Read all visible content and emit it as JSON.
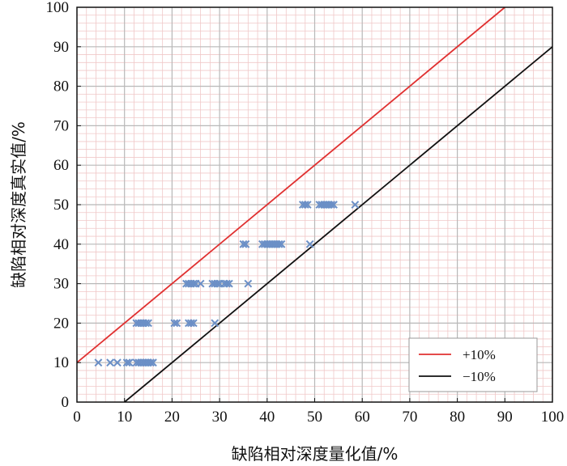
{
  "chart_data": {
    "type": "scatter",
    "xlabel": "缺陷相对深度量化值/%",
    "ylabel": "缺陷相对深度真实值/%",
    "xlim": [
      0,
      100
    ],
    "ylim": [
      0,
      100
    ],
    "x_ticks": [
      "0",
      "10",
      "20",
      "30",
      "40",
      "50",
      "60",
      "70",
      "80",
      "90",
      "100"
    ],
    "y_ticks": [
      "0",
      "10",
      "20",
      "30",
      "40",
      "50",
      "60",
      "70",
      "80",
      "90",
      "100"
    ],
    "grid": true,
    "minor_grid": true,
    "legend_position": "bottom-right",
    "series": [
      {
        "kind": "scatter",
        "color": "#6b8fc6",
        "marker": "x",
        "points": [
          [
            4.5,
            10
          ],
          [
            7,
            10
          ],
          [
            8.5,
            10
          ],
          [
            10.5,
            10
          ],
          [
            11,
            10
          ],
          [
            12.5,
            10
          ],
          [
            13,
            10
          ],
          [
            13.5,
            10
          ],
          [
            14,
            10
          ],
          [
            14.5,
            10
          ],
          [
            15,
            10
          ],
          [
            15.5,
            10
          ],
          [
            16,
            10
          ],
          [
            12.5,
            20
          ],
          [
            13,
            20
          ],
          [
            13.5,
            20
          ],
          [
            14,
            20
          ],
          [
            14.5,
            20
          ],
          [
            15,
            20
          ],
          [
            20.5,
            20
          ],
          [
            21,
            20
          ],
          [
            23.5,
            20
          ],
          [
            24,
            20
          ],
          [
            24.5,
            20
          ],
          [
            29,
            20
          ],
          [
            23,
            30
          ],
          [
            23.5,
            30
          ],
          [
            24,
            30
          ],
          [
            24.5,
            30
          ],
          [
            25,
            30
          ],
          [
            26,
            30
          ],
          [
            28.5,
            30
          ],
          [
            29,
            30
          ],
          [
            29.5,
            30
          ],
          [
            30,
            30
          ],
          [
            31,
            30
          ],
          [
            31.5,
            30
          ],
          [
            32,
            30
          ],
          [
            36,
            30
          ],
          [
            35,
            40
          ],
          [
            35.5,
            40
          ],
          [
            39,
            40
          ],
          [
            39.5,
            40
          ],
          [
            40,
            40
          ],
          [
            40.5,
            40
          ],
          [
            41,
            40
          ],
          [
            41.5,
            40
          ],
          [
            42,
            40
          ],
          [
            42.5,
            40
          ],
          [
            43,
            40
          ],
          [
            49,
            40
          ],
          [
            47.5,
            50
          ],
          [
            48,
            50
          ],
          [
            48.5,
            50
          ],
          [
            51,
            50
          ],
          [
            51.5,
            50
          ],
          [
            52,
            50
          ],
          [
            52.5,
            50
          ],
          [
            53,
            50
          ],
          [
            53.5,
            50
          ],
          [
            54,
            50
          ],
          [
            58.5,
            50
          ]
        ]
      },
      {
        "kind": "line",
        "name": "+10%",
        "color": "#e03030",
        "points": [
          [
            0,
            10
          ],
          [
            90,
            100
          ]
        ]
      },
      {
        "kind": "line",
        "name": "−10%",
        "color": "#111111",
        "points": [
          [
            10,
            0
          ],
          [
            100,
            90
          ]
        ]
      }
    ]
  }
}
